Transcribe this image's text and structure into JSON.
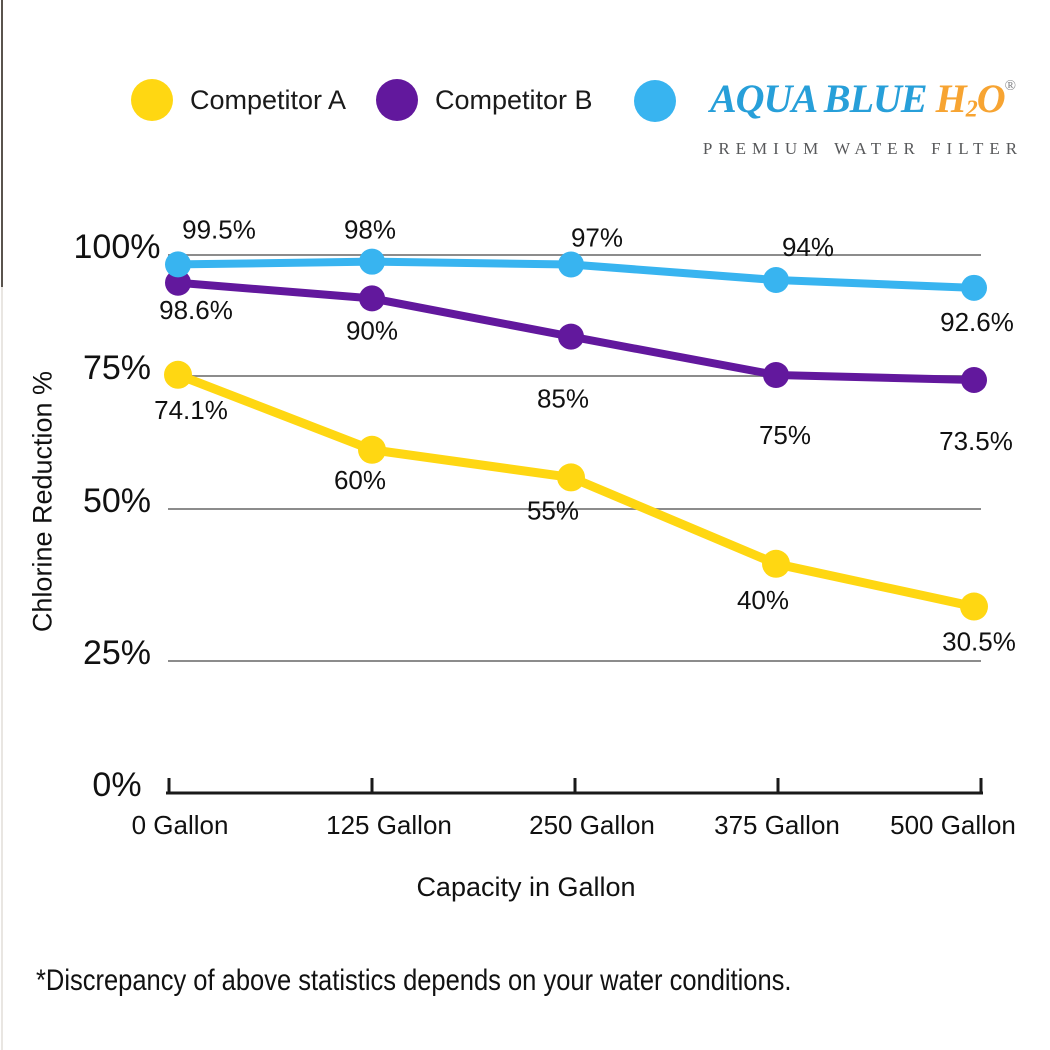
{
  "legend": {
    "items": [
      {
        "label": "Competitor A",
        "color": "#FFD712"
      },
      {
        "label": "Competitor B",
        "color": "#62189D"
      },
      {
        "label": "Aqua Blue H2O",
        "color": "#38B4F0"
      }
    ],
    "brand": {
      "name_main": "AQUA BLUE",
      "formula_h": "H",
      "formula_sub": "2",
      "formula_o": "O",
      "registered_mark": "®",
      "tagline": "PREMIUM WATER FILTER",
      "name_color": "#279FD9",
      "accent_color": "#F7A432",
      "tagline_color": "#58595B"
    }
  },
  "chart_data": {
    "type": "line",
    "title": "",
    "xlabel": "Capacity in Gallon",
    "ylabel": "Chlorine Reduction %",
    "categories": [
      "0 Gallon",
      "125 Gallon",
      "250 Gallon",
      "375 Gallon",
      "500 Gallon"
    ],
    "x_gallons": [
      0,
      125,
      250,
      375,
      500
    ],
    "yticks": [
      "0%",
      "25%",
      "50%",
      "75%",
      "100%"
    ],
    "ylim": [
      0,
      100
    ],
    "grid": true,
    "legend_position": "top",
    "gridline_color": "#8C8C8C",
    "axis_color": "#1a1a1a",
    "series": [
      {
        "name": "Competitor A",
        "color": "#FFD712",
        "values": [
          74.1,
          60,
          55,
          40,
          30.5
        ],
        "labels": [
          "74.1%",
          "60%",
          "55%",
          "40%",
          "30.5%"
        ]
      },
      {
        "name": "Competitor B",
        "color": "#62189D",
        "values": [
          98.6,
          90,
          85,
          75,
          73.5
        ],
        "labels": [
          "98.6%",
          "90%",
          "85%",
          "75%",
          "73.5%"
        ]
      },
      {
        "name": "Aqua Blue H2O",
        "color": "#38B4F0",
        "values": [
          99.5,
          98,
          97,
          94,
          92.6
        ],
        "labels": [
          "99.5%",
          "98%",
          "97%",
          "94%",
          "92.6%"
        ]
      }
    ]
  },
  "footnote": "*Discrepancy of above statistics depends on your water conditions."
}
